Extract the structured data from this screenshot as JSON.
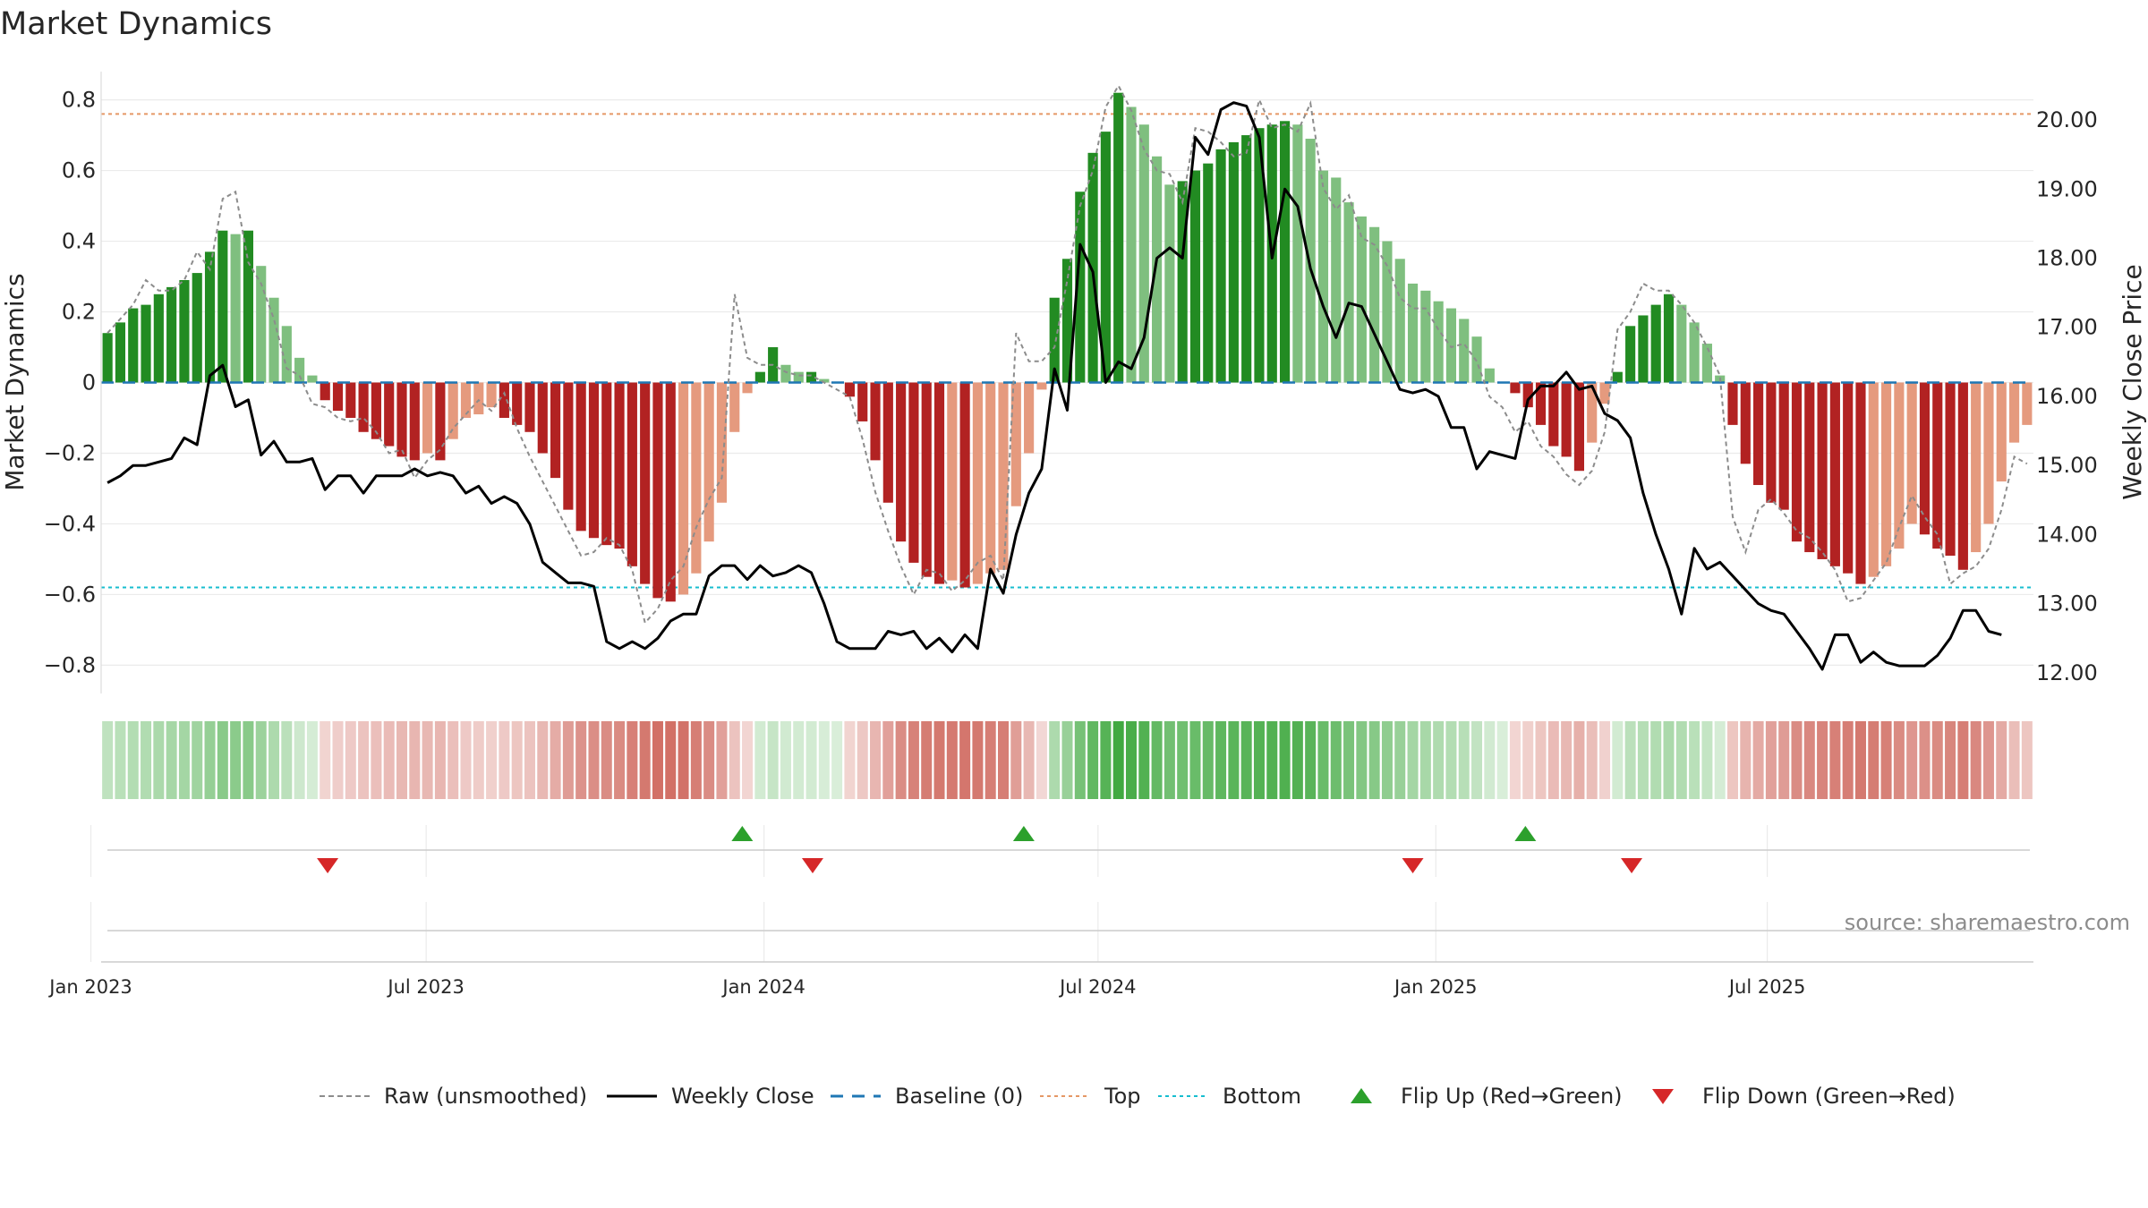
{
  "chart_data": {
    "type": "bar",
    "title": "Market Dynamics",
    "ylabel_left": "Market Dynamics",
    "ylabel_right": "Weekly Close Price",
    "y_left_ticks": [
      "0.8",
      "0.6",
      "0.4",
      "0.2",
      "0",
      "−0.2",
      "−0.4",
      "−0.6",
      "−0.8"
    ],
    "y_left_tick_values": [
      0.8,
      0.6,
      0.4,
      0.2,
      0,
      -0.2,
      -0.4,
      -0.6,
      -0.8
    ],
    "y_right_ticks": [
      "20.00",
      "19.00",
      "18.00",
      "17.00",
      "16.00",
      "15.00",
      "14.00",
      "13.00",
      "12.00"
    ],
    "y_right_tick_values": [
      20,
      19,
      18,
      17,
      16,
      15,
      14,
      13,
      12
    ],
    "ylim_left": [
      -0.88,
      0.88
    ],
    "ylim_right": [
      11.7,
      20.7
    ],
    "x_tick_labels": [
      "Jan 2023",
      "Jul 2023",
      "Jan 2024",
      "Jul 2024",
      "Jan 2025",
      "Jul 2025"
    ],
    "x_tick_weeks": [
      -1.3,
      24.9,
      51.3,
      77.4,
      103.8,
      129.7
    ],
    "top_threshold": 0.76,
    "bottom_threshold": -0.58,
    "baseline": 0,
    "momentum": [
      0.14,
      0.17,
      0.21,
      0.22,
      0.25,
      0.27,
      0.29,
      0.31,
      0.37,
      0.43,
      0.42,
      0.43,
      0.33,
      0.24,
      0.16,
      0.07,
      0.02,
      -0.05,
      -0.08,
      -0.1,
      -0.14,
      -0.16,
      -0.18,
      -0.21,
      -0.22,
      -0.2,
      -0.22,
      -0.16,
      -0.1,
      -0.09,
      -0.07,
      -0.1,
      -0.12,
      -0.14,
      -0.2,
      -0.27,
      -0.36,
      -0.42,
      -0.44,
      -0.46,
      -0.47,
      -0.52,
      -0.57,
      -0.61,
      -0.62,
      -0.6,
      -0.54,
      -0.45,
      -0.34,
      -0.14,
      -0.03,
      0.03,
      0.1,
      0.05,
      0.03,
      0.03,
      0.01,
      0.0,
      -0.04,
      -0.11,
      -0.22,
      -0.34,
      -0.45,
      -0.51,
      -0.55,
      -0.57,
      -0.56,
      -0.58,
      -0.57,
      -0.54,
      -0.53,
      -0.35,
      -0.2,
      -0.02,
      0.24,
      0.35,
      0.54,
      0.65,
      0.71,
      0.82,
      0.78,
      0.73,
      0.64,
      0.56,
      0.57,
      0.6,
      0.62,
      0.66,
      0.68,
      0.7,
      0.72,
      0.73,
      0.74,
      0.73,
      0.69,
      0.6,
      0.58,
      0.51,
      0.47,
      0.44,
      0.4,
      0.35,
      0.28,
      0.26,
      0.23,
      0.21,
      0.18,
      0.13,
      0.04,
      0.0,
      -0.03,
      -0.07,
      -0.12,
      -0.18,
      -0.21,
      -0.25,
      -0.17,
      -0.06,
      0.03,
      0.16,
      0.19,
      0.22,
      0.25,
      0.22,
      0.17,
      0.11,
      0.02,
      -0.12,
      -0.23,
      -0.29,
      -0.34,
      -0.36,
      -0.45,
      -0.48,
      -0.5,
      -0.52,
      -0.54,
      -0.57,
      -0.55,
      -0.52,
      -0.47,
      -0.4,
      -0.43,
      -0.47,
      -0.49,
      -0.53,
      -0.48,
      -0.4,
      -0.28,
      -0.17,
      -0.12
    ],
    "raw_unsmoothed": [
      0.14,
      0.18,
      0.22,
      0.29,
      0.26,
      0.26,
      0.29,
      0.37,
      0.32,
      0.52,
      0.54,
      0.34,
      0.28,
      0.18,
      0.04,
      0.02,
      -0.06,
      -0.07,
      -0.1,
      -0.11,
      -0.1,
      -0.14,
      -0.2,
      -0.19,
      -0.27,
      -0.22,
      -0.19,
      -0.13,
      -0.09,
      -0.05,
      -0.08,
      -0.03,
      -0.13,
      -0.21,
      -0.28,
      -0.35,
      -0.42,
      -0.49,
      -0.48,
      -0.44,
      -0.46,
      -0.53,
      -0.68,
      -0.64,
      -0.56,
      -0.52,
      -0.41,
      -0.33,
      -0.27,
      0.25,
      0.07,
      0.05,
      0.05,
      0.03,
      0.02,
      0.02,
      0.0,
      -0.02,
      -0.04,
      -0.16,
      -0.31,
      -0.42,
      -0.52,
      -0.6,
      -0.53,
      -0.54,
      -0.59,
      -0.56,
      -0.51,
      -0.49,
      -0.56,
      0.14,
      0.06,
      0.06,
      0.1,
      0.29,
      0.5,
      0.6,
      0.78,
      0.84,
      0.77,
      0.66,
      0.6,
      0.59,
      0.51,
      0.72,
      0.71,
      0.68,
      0.64,
      0.65,
      0.8,
      0.72,
      0.73,
      0.71,
      0.79,
      0.55,
      0.49,
      0.53,
      0.41,
      0.39,
      0.33,
      0.24,
      0.21,
      0.21,
      0.15,
      0.1,
      0.11,
      0.06,
      -0.04,
      -0.07,
      -0.14,
      -0.11,
      -0.18,
      -0.21,
      -0.26,
      -0.29,
      -0.25,
      -0.14,
      0.15,
      0.2,
      0.28,
      0.26,
      0.26,
      0.22,
      0.17,
      0.1,
      0.02,
      -0.38,
      -0.48,
      -0.36,
      -0.33,
      -0.37,
      -0.42,
      -0.44,
      -0.48,
      -0.53,
      -0.62,
      -0.61,
      -0.56,
      -0.51,
      -0.41,
      -0.32,
      -0.38,
      -0.43,
      -0.57,
      -0.54,
      -0.52,
      -0.47,
      -0.36,
      -0.21,
      -0.23
    ],
    "weekly_close": [
      14.75,
      14.85,
      15.0,
      15.0,
      15.05,
      15.1,
      15.4,
      15.3,
      16.3,
      16.45,
      15.85,
      15.95,
      15.15,
      15.35,
      15.05,
      15.05,
      15.1,
      14.65,
      14.85,
      14.85,
      14.6,
      14.85,
      14.85,
      14.85,
      14.95,
      14.85,
      14.9,
      14.85,
      14.6,
      14.7,
      14.45,
      14.55,
      14.45,
      14.15,
      13.6,
      13.45,
      13.3,
      13.3,
      13.25,
      12.45,
      12.35,
      12.45,
      12.35,
      12.5,
      12.75,
      12.85,
      12.85,
      13.4,
      13.55,
      13.55,
      13.35,
      13.55,
      13.4,
      13.45,
      13.55,
      13.45,
      13.0,
      12.45,
      12.35,
      12.35,
      12.35,
      12.6,
      12.55,
      12.6,
      12.35,
      12.5,
      12.3,
      12.55,
      12.35,
      13.5,
      13.15,
      14.0,
      14.6,
      14.95,
      16.4,
      15.8,
      18.2,
      17.8,
      16.2,
      16.5,
      16.4,
      16.85,
      18.0,
      18.15,
      18.0,
      19.75,
      19.5,
      20.15,
      20.25,
      20.2,
      19.75,
      18.0,
      19.0,
      18.75,
      17.85,
      17.3,
      16.85,
      17.35,
      17.3,
      16.9,
      16.5,
      16.1,
      16.05,
      16.1,
      16.0,
      15.55,
      15.55,
      14.95,
      15.2,
      15.15,
      15.1,
      15.95,
      16.15,
      16.15,
      16.35,
      16.1,
      16.15,
      15.75,
      15.65,
      15.4,
      14.6,
      14.0,
      13.5,
      12.85,
      13.8,
      13.5,
      13.6,
      13.4,
      13.2,
      13.0,
      12.9,
      12.85,
      12.6,
      12.35,
      12.05,
      12.55,
      12.55,
      12.15,
      12.3,
      12.15,
      12.1,
      12.1,
      12.1,
      12.25,
      12.5,
      12.9,
      12.9,
      12.6,
      12.55
    ],
    "flip_up_weeks": [
      49.6,
      71.6,
      110.8
    ],
    "flip_down_weeks": [
      17.2,
      55.1,
      102.0,
      119.1
    ],
    "legend": [
      {
        "label": "Raw (unsmoothed)",
        "kind": "dashed-line",
        "color": "#8c8c8c"
      },
      {
        "label": "Weekly Close",
        "kind": "solid-line",
        "color": "#000000"
      },
      {
        "label": "Baseline (0)",
        "kind": "dashed-line",
        "color": "#1f77b4"
      },
      {
        "label": "Top",
        "kind": "dotted-line",
        "color": "#e59866"
      },
      {
        "label": "Bottom",
        "kind": "dotted-line",
        "color": "#17becf"
      },
      {
        "label": "Flip Up (Red→Green)",
        "kind": "triangle-up",
        "color": "#2ca02c"
      },
      {
        "label": "Flip Down (Green→Red)",
        "kind": "triangle-down",
        "color": "#d62728"
      }
    ],
    "legend_placement": "bottom-center",
    "grid": true,
    "source_text": "source: sharemaestro.com"
  },
  "colors": {
    "strong_green": "#228b22",
    "light_green": "#7fbf7f",
    "strong_red": "#b22222",
    "light_red": "#e59a7e",
    "top_line": "#e59866",
    "bottom_line": "#17becf",
    "baseline": "#1f77b4",
    "raw_line": "#8c8c8c",
    "close_line": "#000000",
    "flip_up": "#2ca02c",
    "flip_down": "#d62728"
  }
}
